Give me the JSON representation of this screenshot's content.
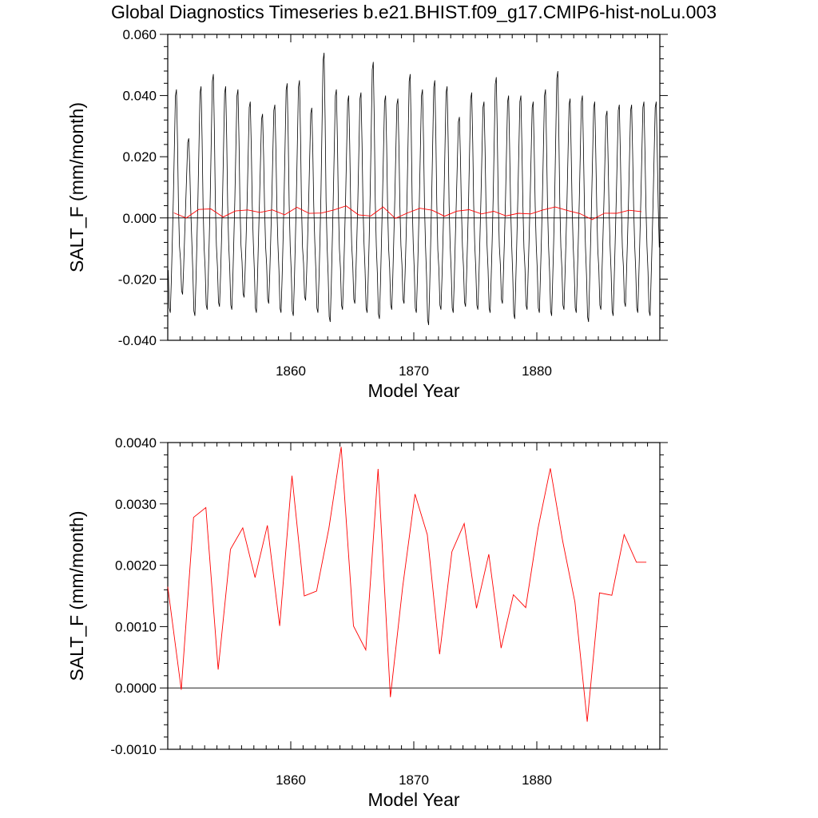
{
  "title": "Global Diagnostics Timeseries b.e21.BHIST.f09_g17.CMIP6-hist-noLu.003",
  "colors": {
    "monthly": "#000000",
    "annual": "#ff0000",
    "axis": "#000000"
  },
  "chart_data": [
    {
      "type": "line",
      "title": "",
      "xlabel": "Model Year",
      "ylabel": "SALT_F (mm/month)",
      "xlim": [
        1850,
        1890
      ],
      "ylim": [
        -0.04,
        0.06
      ],
      "xticks": [
        1860,
        1870,
        1880
      ],
      "xtick_labels": [
        "1860",
        "1870",
        "1880"
      ],
      "yticks": [
        -0.04,
        -0.02,
        0.0,
        0.02,
        0.04,
        0.06
      ],
      "ytick_labels": [
        "-0.040",
        "-0.020",
        "0.000",
        "0.020",
        "0.040",
        "0.060"
      ],
      "zero_line": 0.0,
      "series": [
        {
          "key": "monthly",
          "color": "#000000",
          "x_start": 1850.04,
          "x_step": 0.08333,
          "annual_peaks": [
            0.042,
            0.026,
            0.043,
            0.047,
            0.043,
            0.042,
            0.038,
            0.034,
            0.037,
            0.044,
            0.045,
            0.036,
            0.054,
            0.042,
            0.04,
            0.041,
            0.051,
            0.04,
            0.039,
            0.047,
            0.042,
            0.045,
            0.043,
            0.033,
            0.041,
            0.038,
            0.046,
            0.04,
            0.04,
            0.038,
            0.042,
            0.048,
            0.039,
            0.04,
            0.038,
            0.035,
            0.037,
            0.037,
            0.038,
            0.038
          ],
          "annual_troughs": [
            -0.031,
            -0.025,
            -0.032,
            -0.03,
            -0.029,
            -0.03,
            -0.026,
            -0.031,
            -0.028,
            -0.031,
            -0.032,
            -0.027,
            -0.031,
            -0.034,
            -0.03,
            -0.028,
            -0.031,
            -0.033,
            -0.03,
            -0.028,
            -0.031,
            -0.035,
            -0.03,
            -0.031,
            -0.029,
            -0.03,
            -0.031,
            -0.028,
            -0.033,
            -0.03,
            -0.031,
            -0.032,
            -0.03,
            -0.031,
            -0.034,
            -0.03,
            -0.032,
            -0.029,
            -0.031,
            -0.032
          ]
        },
        {
          "key": "annual",
          "color": "#ff0000",
          "x": [
            1850.5,
            1851.5,
            1852.5,
            1853.5,
            1854.5,
            1855.5,
            1856.5,
            1857.5,
            1858.5,
            1859.5,
            1860.5,
            1861.5,
            1862.5,
            1863.5,
            1864.5,
            1865.5,
            1866.5,
            1867.5,
            1868.5,
            1869.5,
            1870.5,
            1871.5,
            1872.5,
            1873.5,
            1874.5,
            1875.5,
            1876.5,
            1877.5,
            1878.5,
            1879.5,
            1880.5,
            1881.5,
            1882.5,
            1883.5,
            1884.5,
            1885.5,
            1886.5,
            1887.5,
            1888.5
          ],
          "values": [
            0.00165,
            -3e-05,
            0.00278,
            0.00294,
            0.0003,
            0.00226,
            0.00261,
            0.0018,
            0.00265,
            0.00101,
            0.00346,
            0.0015,
            0.00158,
            0.0026,
            0.00393,
            0.00101,
            0.00062,
            0.00357,
            -0.00015,
            0.00165,
            0.00316,
            0.0025,
            0.00055,
            0.00222,
            0.00268,
            0.0013,
            0.00218,
            0.00065,
            0.00152,
            0.00131,
            0.0026,
            0.00358,
            0.0024,
            0.0014,
            -0.00055,
            0.00155,
            0.00151,
            0.0025,
            0.00205
          ]
        }
      ]
    },
    {
      "type": "line",
      "title": "",
      "xlabel": "Model Year",
      "ylabel": "SALT_F (mm/month)",
      "xlim": [
        1850,
        1890
      ],
      "ylim": [
        -0.001,
        0.004
      ],
      "xticks": [
        1860,
        1870,
        1880
      ],
      "xtick_labels": [
        "1860",
        "1870",
        "1880"
      ],
      "yticks": [
        -0.001,
        0.0,
        0.001,
        0.002,
        0.003,
        0.004
      ],
      "ytick_labels": [
        "-0.0010",
        "0.0000",
        "0.0010",
        "0.0020",
        "0.0030",
        "0.0040"
      ],
      "zero_line": 0.0,
      "series": [
        {
          "key": "annual",
          "color": "#ff0000",
          "x": [
            1850.0,
            1851.1,
            1852.1,
            1853.1,
            1854.1,
            1855.1,
            1856.1,
            1857.1,
            1858.1,
            1859.1,
            1860.1,
            1861.1,
            1862.1,
            1863.1,
            1864.1,
            1865.1,
            1866.1,
            1867.1,
            1868.1,
            1869.1,
            1870.1,
            1871.1,
            1872.1,
            1873.1,
            1874.1,
            1875.1,
            1876.1,
            1877.1,
            1878.1,
            1879.1,
            1880.1,
            1881.1,
            1882.1,
            1883.1,
            1884.1,
            1885.1,
            1886.1,
            1887.1,
            1888.1,
            1888.9
          ],
          "values": [
            0.00165,
            -3e-05,
            0.00278,
            0.00294,
            0.0003,
            0.00226,
            0.00261,
            0.0018,
            0.00265,
            0.00101,
            0.00346,
            0.0015,
            0.00158,
            0.0026,
            0.00393,
            0.00101,
            0.00062,
            0.00357,
            -0.00015,
            0.00165,
            0.00316,
            0.0025,
            0.00055,
            0.00222,
            0.00268,
            0.0013,
            0.00218,
            0.00065,
            0.00152,
            0.00131,
            0.0026,
            0.00358,
            0.0024,
            0.0014,
            -0.00055,
            0.00155,
            0.00151,
            0.0025,
            0.00205,
            0.00205
          ]
        }
      ]
    }
  ]
}
